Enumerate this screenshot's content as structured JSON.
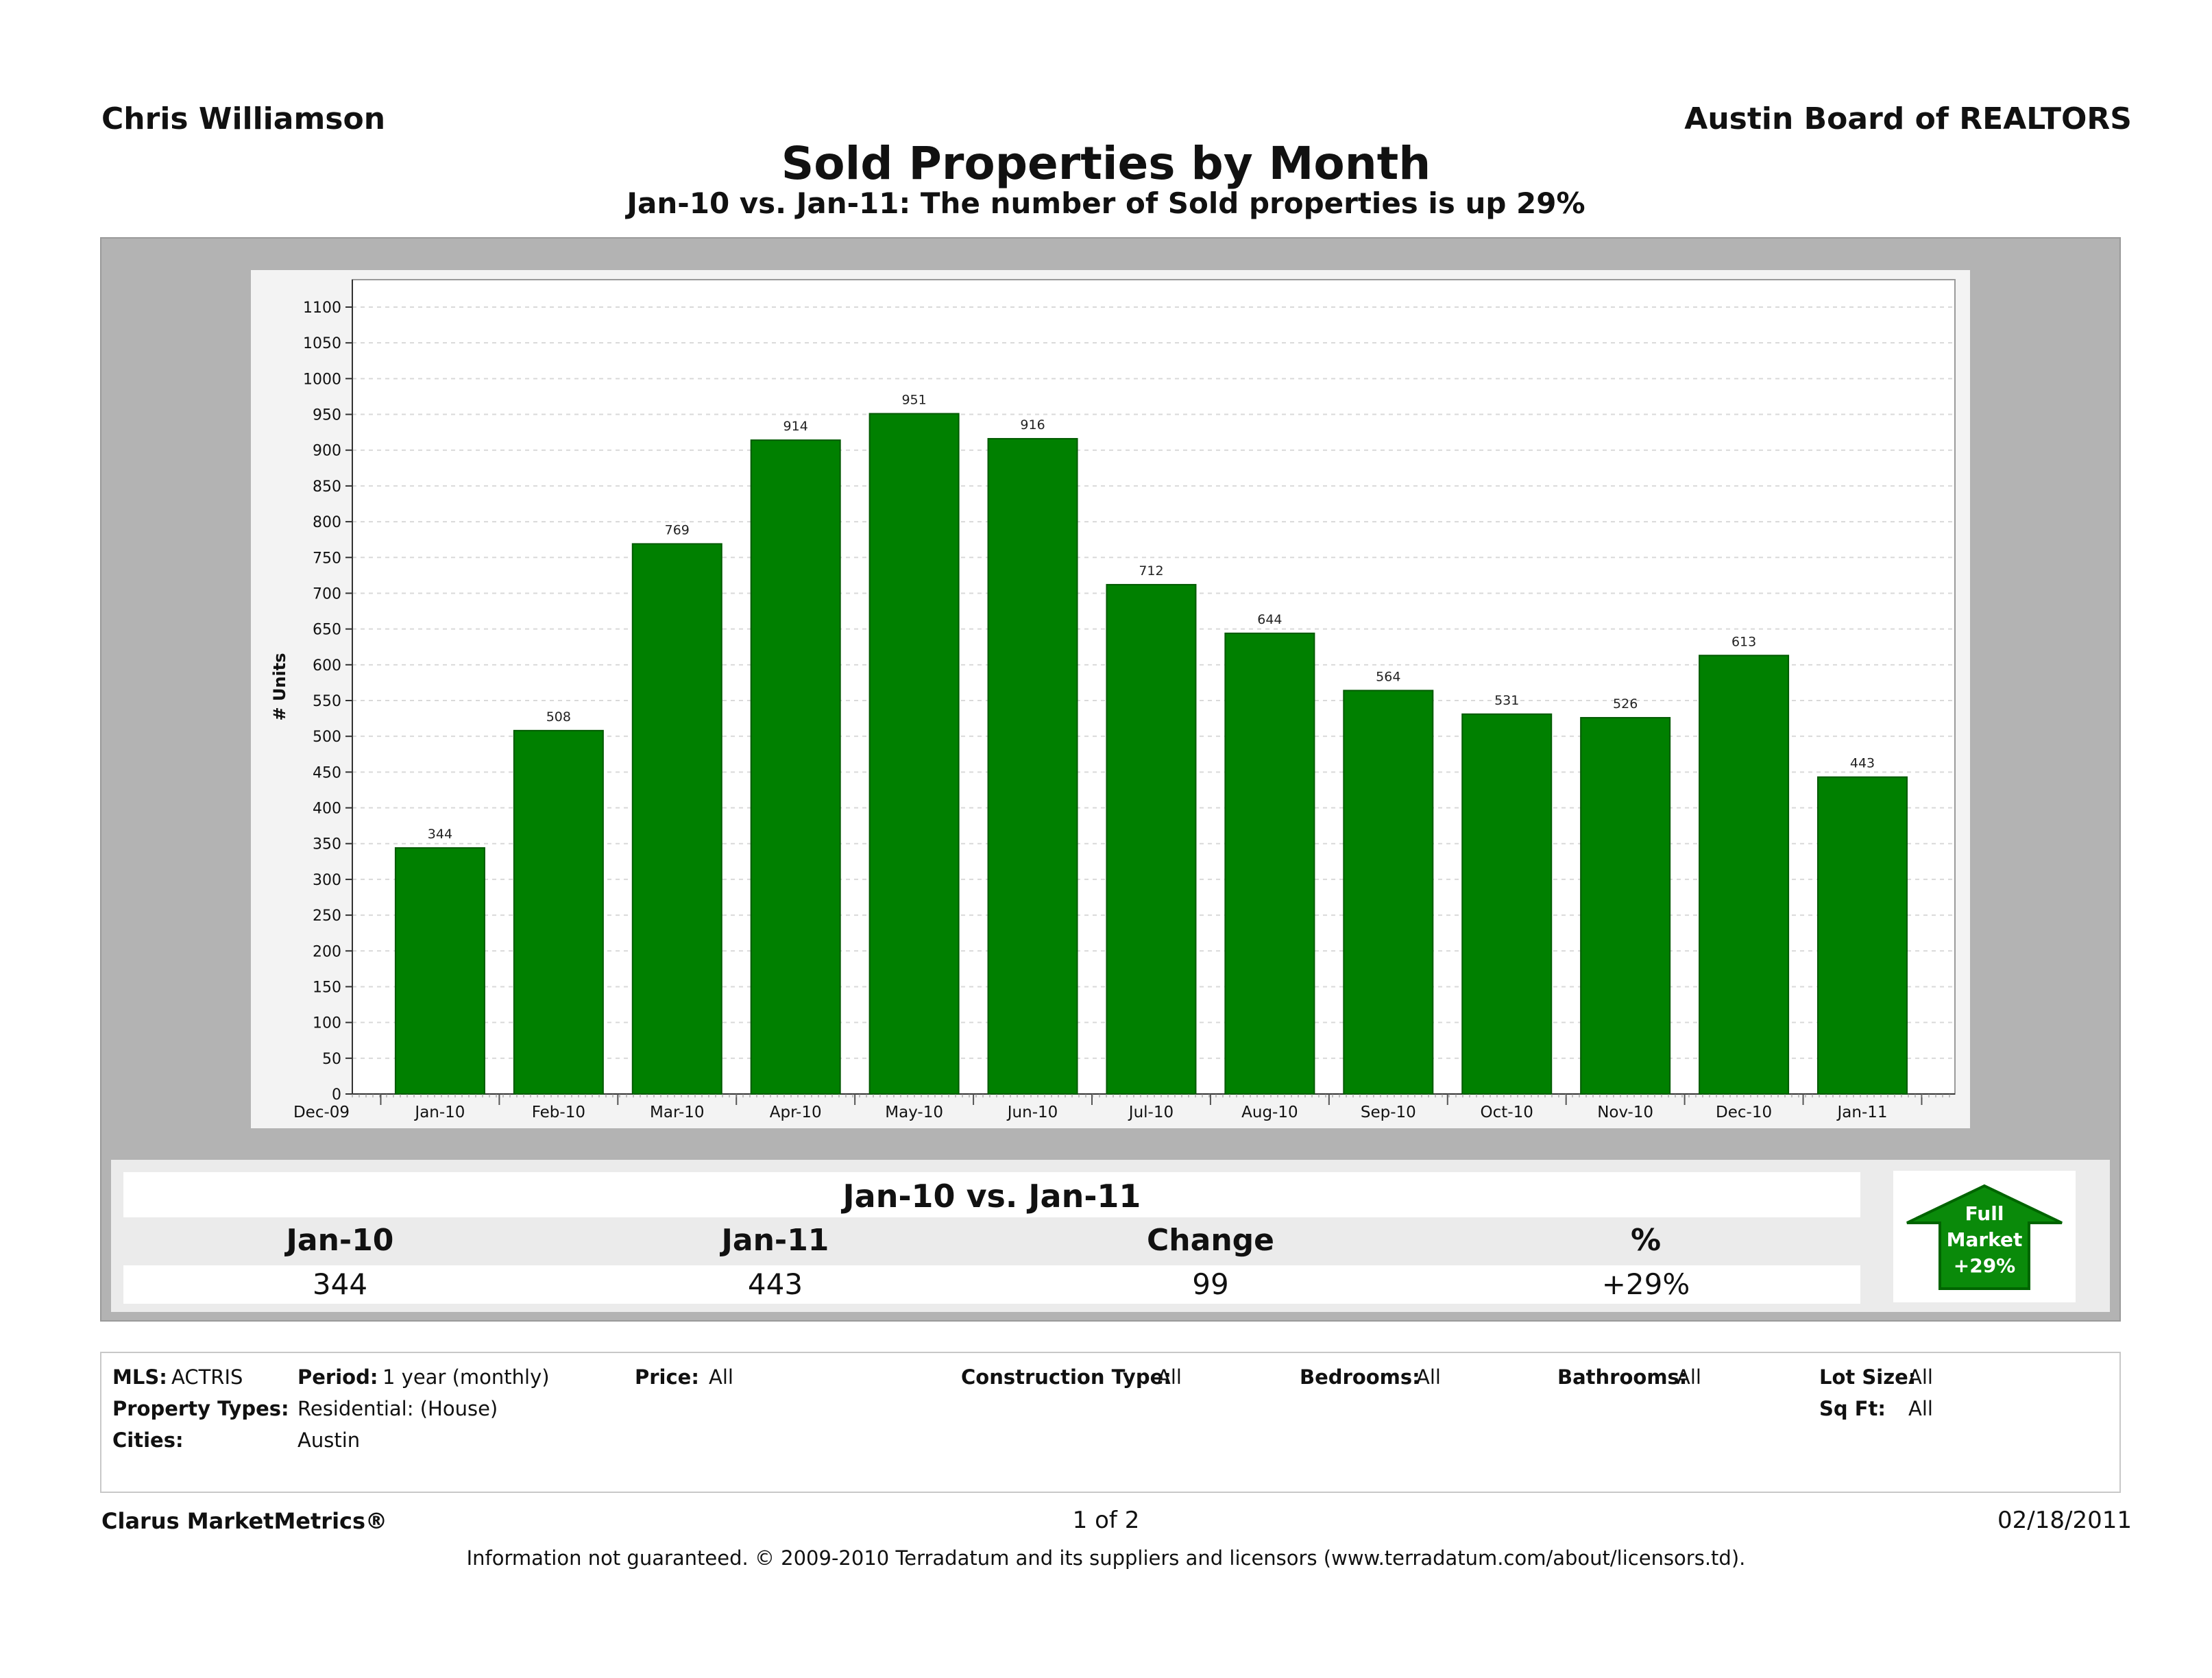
{
  "header": {
    "agent_name": "Chris Williamson",
    "organization": "Austin Board of REALTORS"
  },
  "colors": {
    "bar": "#008000",
    "bar_edge": "#005a00",
    "frame": "#b3b3b3",
    "grid": "#d9d9d9"
  },
  "chart_data": {
    "type": "bar",
    "title": "Sold Properties by Month",
    "subtitle": "Jan-10 vs. Jan-11: The number of Sold properties is up 29%",
    "xlabel": "",
    "ylabel": "# Units",
    "ylim": [
      0,
      1100
    ],
    "ytick_step": 50,
    "categories": [
      "Dec-09",
      "Jan-10",
      "Feb-10",
      "Mar-10",
      "Apr-10",
      "May-10",
      "Jun-10",
      "Jul-10",
      "Aug-10",
      "Sep-10",
      "Oct-10",
      "Nov-10",
      "Dec-10",
      "Jan-11"
    ],
    "values": [
      null,
      344,
      508,
      769,
      914,
      951,
      916,
      712,
      644,
      564,
      531,
      526,
      613,
      443
    ],
    "grid": true,
    "legend": "none"
  },
  "summary": {
    "heading": "Jan-10 vs. Jan-11",
    "columns": [
      {
        "label": "Jan-10",
        "value": "344"
      },
      {
        "label": "Jan-11",
        "value": "443"
      },
      {
        "label": "Change",
        "value": "99"
      },
      {
        "label": "%",
        "value": "+29%"
      }
    ],
    "badge": {
      "line1": "Full",
      "line2": "Market",
      "line3": "+29%",
      "icon": "up-arrow-icon"
    }
  },
  "filters": {
    "mls_label": "MLS:",
    "mls_value": "ACTRIS",
    "period_label": "Period:",
    "period_value": "1 year (monthly)",
    "price_label": "Price:",
    "price_value": "All",
    "construction_label": "Construction Type:",
    "construction_value": "All",
    "bedrooms_label": "Bedrooms:",
    "bedrooms_value": "All",
    "bathrooms_label": "Bathrooms:",
    "bathrooms_value": "All",
    "lotsize_label": "Lot Size:",
    "lotsize_value": "All",
    "property_types_label": "Property Types:",
    "property_types_value": "Residential: (House)",
    "sqft_label": "Sq Ft:",
    "sqft_value": "All",
    "cities_label": "Cities:",
    "cities_value": "Austin"
  },
  "footer": {
    "brand": "Clarus MarketMetrics®",
    "page": "1 of 2",
    "date": "02/18/2011",
    "disclaimer": "Information not guaranteed.  © 2009-2010 Terradatum and its suppliers and licensors (www.terradatum.com/about/licensors.td)."
  }
}
